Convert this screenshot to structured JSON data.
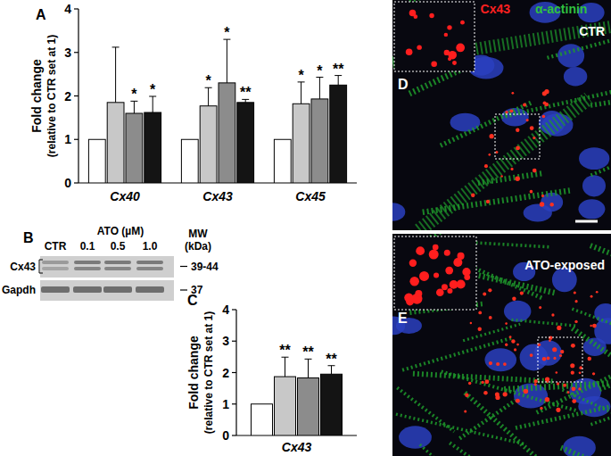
{
  "chart_data": [
    {
      "type": "bar",
      "panel": "A",
      "y_label": "Fold change",
      "y_label_sub": "(relative to CTR set at 1)",
      "categories": [
        "Cx40",
        "Cx43",
        "Cx45"
      ],
      "ylim": [
        0,
        4
      ],
      "yticks": [
        0,
        1,
        2,
        3,
        4
      ],
      "grid": false,
      "series": [
        {
          "color": "#ffffff",
          "values": [
            1,
            1,
            1
          ],
          "errors": [
            0,
            0,
            0
          ],
          "significance": [
            null,
            null,
            null
          ]
        },
        {
          "color": "#c8c8c8",
          "values": [
            1.85,
            1.77,
            1.82
          ],
          "errors": [
            1.27,
            0.42,
            0.5
          ],
          "significance": [
            null,
            "*",
            "*"
          ]
        },
        {
          "color": "#8c8c8c",
          "values": [
            1.6,
            2.3,
            1.93
          ],
          "errors": [
            0.28,
            1.0,
            0.5
          ],
          "significance": [
            "*",
            "*",
            "*"
          ]
        },
        {
          "color": "#141414",
          "values": [
            1.62,
            1.85,
            2.25
          ],
          "errors": [
            0.37,
            0.07,
            0.22
          ],
          "significance": [
            "*",
            "**",
            "**"
          ]
        }
      ]
    },
    {
      "type": "bar",
      "panel": "C",
      "y_label": "Fold change",
      "y_label_sub": "(relative to CTR set at 1)",
      "categories": [
        "Cx43"
      ],
      "ylim": [
        0,
        4
      ],
      "yticks": [
        0,
        1,
        2,
        3,
        4
      ],
      "grid": false,
      "series": [
        {
          "color": "#ffffff",
          "values": [
            1
          ],
          "errors": [
            0
          ],
          "significance": [
            null
          ]
        },
        {
          "color": "#c8c8c8",
          "values": [
            1.87
          ],
          "errors": [
            0.62
          ],
          "significance": [
            "**"
          ]
        },
        {
          "color": "#8c8c8c",
          "values": [
            1.83
          ],
          "errors": [
            0.6
          ],
          "significance": [
            "**"
          ]
        },
        {
          "color": "#141414",
          "values": [
            1.95
          ],
          "errors": [
            0.27
          ],
          "significance": [
            "**"
          ]
        }
      ]
    }
  ],
  "blot": {
    "panel": "B",
    "title": "ATO (µM)",
    "lanes": [
      "CTR",
      "0.1",
      "0.5",
      "1.0"
    ],
    "mw_header": "MW",
    "mw_unit": "(kDa)",
    "rows": [
      {
        "label": "Cx43",
        "mw": "39-44"
      },
      {
        "label": "Gapdh",
        "mw": "37"
      }
    ]
  },
  "micrographs": {
    "channel_labels": [
      {
        "text": "Cx43",
        "color": "#ff2020"
      },
      {
        "text": "α-actinin",
        "color": "#30c040"
      }
    ],
    "panels": [
      {
        "panel": "D",
        "label": "CTR"
      },
      {
        "panel": "E",
        "label": "ATO-exposed"
      }
    ]
  }
}
